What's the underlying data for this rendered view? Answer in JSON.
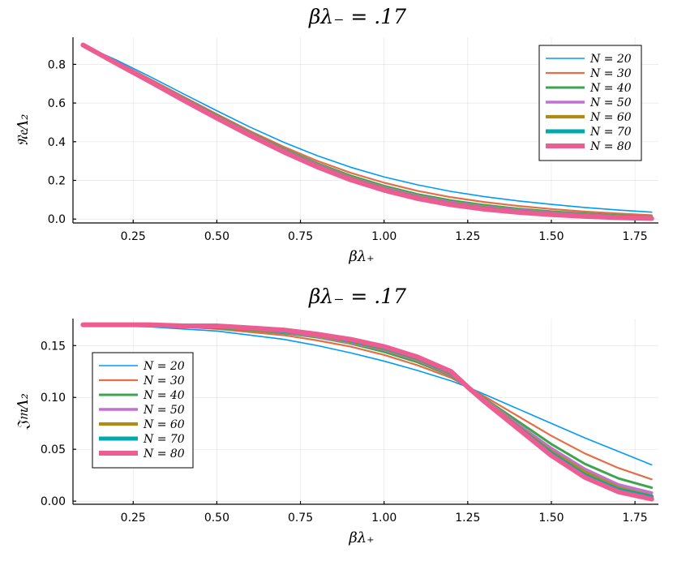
{
  "chart_data": [
    {
      "type": "line",
      "title": "βλ₋ = .17",
      "xlabel": "βλ₊",
      "ylabel": "𝔑𝔢Λ₂",
      "xlim": [
        0.07,
        1.82
      ],
      "ylim": [
        -0.02,
        0.94
      ],
      "xticks": [
        0.25,
        0.5,
        0.75,
        1.0,
        1.25,
        1.5,
        1.75
      ],
      "xtick_labels": [
        "0.25",
        "0.50",
        "0.75",
        "1.00",
        "1.25",
        "1.50",
        "1.75"
      ],
      "yticks": [
        0.0,
        0.2,
        0.4,
        0.6,
        0.8
      ],
      "ytick_labels": [
        "0.0",
        "0.2",
        "0.4",
        "0.6",
        "0.8"
      ],
      "grid": true,
      "legend_position": "top-right",
      "x": [
        0.1,
        0.2,
        0.3,
        0.4,
        0.5,
        0.6,
        0.7,
        0.8,
        0.9,
        1.0,
        1.1,
        1.2,
        1.3,
        1.4,
        1.5,
        1.6,
        1.7,
        1.8
      ],
      "series": [
        {
          "name": "N = 20",
          "color": "#009AFA",
          "width": 1.6,
          "values": [
            0.9,
            0.822,
            0.737,
            0.648,
            0.56,
            0.475,
            0.397,
            0.328,
            0.268,
            0.218,
            0.177,
            0.143,
            0.116,
            0.094,
            0.076,
            0.06,
            0.047,
            0.036
          ]
        },
        {
          "name": "N = 30",
          "color": "#E36F47",
          "width": 2.2,
          "values": [
            0.9,
            0.815,
            0.725,
            0.633,
            0.543,
            0.455,
            0.374,
            0.301,
            0.239,
            0.188,
            0.146,
            0.113,
            0.088,
            0.068,
            0.052,
            0.039,
            0.029,
            0.02
          ]
        },
        {
          "name": "N = 40",
          "color": "#3EA44E",
          "width": 3.0,
          "values": [
            0.9,
            0.811,
            0.719,
            0.626,
            0.535,
            0.446,
            0.363,
            0.288,
            0.224,
            0.171,
            0.128,
            0.096,
            0.072,
            0.053,
            0.039,
            0.028,
            0.019,
            0.012
          ]
        },
        {
          "name": "N = 50",
          "color": "#C271D2",
          "width": 3.6,
          "values": [
            0.9,
            0.809,
            0.716,
            0.622,
            0.53,
            0.441,
            0.357,
            0.281,
            0.215,
            0.162,
            0.119,
            0.087,
            0.063,
            0.046,
            0.033,
            0.022,
            0.014,
            0.008
          ]
        },
        {
          "name": "N = 60",
          "color": "#AC8D18",
          "width": 4.2,
          "values": [
            0.9,
            0.807,
            0.714,
            0.619,
            0.527,
            0.437,
            0.353,
            0.276,
            0.21,
            0.156,
            0.113,
            0.081,
            0.058,
            0.041,
            0.029,
            0.019,
            0.011,
            0.006
          ]
        },
        {
          "name": "N = 70",
          "color": "#00A9AD",
          "width": 5.0,
          "values": [
            0.9,
            0.806,
            0.712,
            0.617,
            0.524,
            0.434,
            0.35,
            0.273,
            0.206,
            0.152,
            0.109,
            0.077,
            0.054,
            0.038,
            0.026,
            0.016,
            0.009,
            0.004
          ]
        },
        {
          "name": "N = 80",
          "color": "#ED5D92",
          "width": 6.0,
          "values": [
            0.9,
            0.805,
            0.711,
            0.615,
            0.522,
            0.432,
            0.347,
            0.27,
            0.203,
            0.149,
            0.106,
            0.074,
            0.051,
            0.035,
            0.023,
            0.014,
            0.007,
            0.003
          ]
        }
      ]
    },
    {
      "type": "line",
      "title": "βλ₋ = .17",
      "xlabel": "βλ₊",
      "ylabel": "𝔍𝔪Λ₂",
      "xlim": [
        0.07,
        1.82
      ],
      "ylim": [
        -0.003,
        0.176
      ],
      "xticks": [
        0.25,
        0.5,
        0.75,
        1.0,
        1.25,
        1.5,
        1.75
      ],
      "xtick_labels": [
        "0.25",
        "0.50",
        "0.75",
        "1.00",
        "1.25",
        "1.50",
        "1.75"
      ],
      "yticks": [
        0.0,
        0.05,
        0.1,
        0.15
      ],
      "ytick_labels": [
        "0.00",
        "0.05",
        "0.10",
        "0.15"
      ],
      "grid": true,
      "legend_position": "middle-left",
      "x": [
        0.1,
        0.2,
        0.3,
        0.4,
        0.5,
        0.6,
        0.7,
        0.8,
        0.9,
        1.0,
        1.1,
        1.2,
        1.25,
        1.3,
        1.4,
        1.5,
        1.6,
        1.7,
        1.8
      ],
      "series": [
        {
          "name": "N = 20",
          "color": "#009AFA",
          "width": 1.6,
          "values": [
            0.17,
            0.169,
            0.168,
            0.166,
            0.164,
            0.16,
            0.156,
            0.15,
            0.143,
            0.135,
            0.126,
            0.116,
            0.11,
            0.103,
            0.089,
            0.075,
            0.061,
            0.048,
            0.035
          ]
        },
        {
          "name": "N = 30",
          "color": "#E36F47",
          "width": 2.2,
          "values": [
            0.17,
            0.17,
            0.169,
            0.168,
            0.166,
            0.163,
            0.16,
            0.155,
            0.149,
            0.141,
            0.131,
            0.119,
            0.11,
            0.101,
            0.082,
            0.063,
            0.046,
            0.032,
            0.021
          ]
        },
        {
          "name": "N = 40",
          "color": "#3EA44E",
          "width": 3.0,
          "values": [
            0.17,
            0.17,
            0.169,
            0.168,
            0.167,
            0.165,
            0.162,
            0.158,
            0.152,
            0.144,
            0.134,
            0.121,
            0.11,
            0.099,
            0.077,
            0.055,
            0.036,
            0.022,
            0.013
          ]
        },
        {
          "name": "N = 50",
          "color": "#C271D2",
          "width": 3.6,
          "values": [
            0.17,
            0.17,
            0.17,
            0.169,
            0.168,
            0.166,
            0.163,
            0.159,
            0.153,
            0.146,
            0.136,
            0.122,
            0.11,
            0.098,
            0.074,
            0.051,
            0.031,
            0.016,
            0.008
          ]
        },
        {
          "name": "N = 60",
          "color": "#AC8D18",
          "width": 4.2,
          "values": [
            0.17,
            0.17,
            0.17,
            0.169,
            0.168,
            0.166,
            0.164,
            0.16,
            0.154,
            0.147,
            0.137,
            0.123,
            0.11,
            0.097,
            0.072,
            0.048,
            0.028,
            0.013,
            0.005
          ]
        },
        {
          "name": "N = 70",
          "color": "#00A9AD",
          "width": 5.0,
          "values": [
            0.17,
            0.17,
            0.17,
            0.169,
            0.168,
            0.167,
            0.164,
            0.161,
            0.155,
            0.148,
            0.138,
            0.124,
            0.11,
            0.096,
            0.071,
            0.046,
            0.025,
            0.011,
            0.004
          ]
        },
        {
          "name": "N = 80",
          "color": "#ED5D92",
          "width": 6.0,
          "values": [
            0.17,
            0.17,
            0.17,
            0.169,
            0.169,
            0.167,
            0.165,
            0.161,
            0.156,
            0.149,
            0.139,
            0.125,
            0.11,
            0.096,
            0.07,
            0.044,
            0.023,
            0.009,
            0.002
          ]
        }
      ]
    }
  ]
}
